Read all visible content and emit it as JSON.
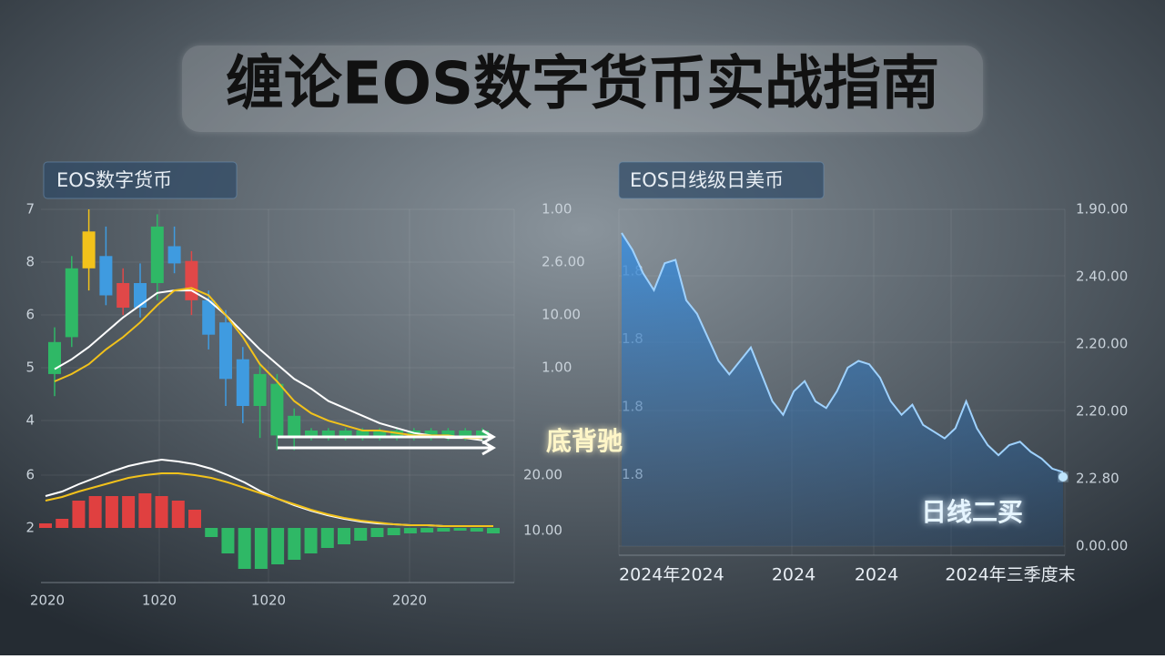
{
  "title": "缠论EOS数字货币实战指南",
  "chart_data": [
    {
      "type": "candlestick",
      "label": "EOS数字货币",
      "left_labels": [
        "7",
        "8",
        "6",
        "5",
        "4"
      ],
      "right_labels": [
        "1.00",
        "2.6.00",
        "10.00",
        "1.00"
      ],
      "x_labels": [
        "2020",
        "1020",
        "1020",
        "2020"
      ],
      "annotation": "底背驰",
      "ylim": [
        0,
        100
      ],
      "open": [
        33,
        48,
        76,
        81,
        70,
        60,
        70,
        85,
        79,
        63,
        54,
        39,
        20,
        8,
        7,
        7,
        7,
        7,
        7,
        7,
        7,
        7,
        7,
        7,
        7,
        7
      ],
      "high": [
        52,
        81,
        100,
        93,
        76,
        78,
        98,
        93,
        83,
        67,
        59,
        44,
        37,
        33,
        19,
        11,
        11,
        11,
        11,
        11,
        11,
        11,
        11,
        11,
        11,
        11
      ],
      "low": [
        24,
        44,
        67,
        61,
        57,
        56,
        63,
        74,
        57,
        43,
        20,
        13,
        7,
        2,
        2,
        6,
        6,
        6,
        6,
        6,
        6,
        6,
        6,
        6,
        6,
        6
      ],
      "close": [
        46,
        76,
        91,
        65,
        60,
        70,
        93,
        78,
        63,
        49,
        31,
        20,
        33,
        29,
        16,
        10,
        10,
        10,
        10,
        10,
        10,
        10,
        10,
        10,
        10,
        10
      ],
      "colors": [
        "#2fb866",
        "#2fb866",
        "#f2c21b",
        "#3f9be0",
        "#e04848",
        "#3f9be0",
        "#2fb866",
        "#3f9be0",
        "#e04848",
        "#3f9be0",
        "#3f9be0",
        "#3f9be0",
        "#2fb866",
        "#2fb866",
        "#2fb866",
        "#2fb866",
        "#2fb866",
        "#2fb866",
        "#2fb866",
        "#2fb866",
        "#2fb866",
        "#2fb866",
        "#2fb866",
        "#2fb866",
        "#2fb866",
        "#2fb866"
      ],
      "series": [
        {
          "color": "#ffffff",
          "values": [
            35,
            39,
            44,
            50,
            56,
            61,
            66,
            67,
            67,
            63,
            57,
            50,
            43,
            37,
            31,
            27,
            22,
            19,
            16,
            13,
            11,
            9,
            8,
            7,
            7,
            6
          ]
        },
        {
          "color": "#f2c21b",
          "values": [
            30,
            33,
            37,
            43,
            48,
            54,
            61,
            67,
            68,
            65,
            57,
            48,
            37,
            30,
            22,
            17,
            14,
            12,
            10,
            10,
            9,
            8,
            8,
            8,
            7,
            7
          ]
        }
      ]
    },
    {
      "type": "bar",
      "left_labels": [
        "6",
        "2"
      ],
      "right_labels": [
        "20.00",
        "10.00"
      ],
      "ylim": [
        -60,
        75
      ],
      "up_color": "#e04040",
      "down_color": "#2fb866",
      "values": [
        5,
        10,
        30,
        35,
        35,
        35,
        38,
        35,
        30,
        20,
        -10,
        -28,
        -45,
        -45,
        -40,
        -35,
        -28,
        -22,
        -18,
        -14,
        -10,
        -8,
        -6,
        -5,
        -4,
        -3,
        -4,
        -6
      ],
      "series": [
        {
          "color": "#ffffff",
          "values": [
            35,
            40,
            48,
            55,
            62,
            68,
            72,
            75,
            73,
            70,
            65,
            58,
            50,
            40,
            32,
            25,
            19,
            14,
            10,
            7,
            5,
            4,
            3,
            3,
            2,
            2,
            2,
            2
          ]
        },
        {
          "color": "#f2c21b",
          "values": [
            30,
            34,
            40,
            45,
            50,
            55,
            58,
            60,
            60,
            58,
            55,
            50,
            44,
            38,
            32,
            26,
            20,
            15,
            11,
            8,
            6,
            4,
            3,
            3,
            2,
            2,
            2,
            2
          ]
        }
      ]
    },
    {
      "type": "area",
      "label": "EOS日线级日美币",
      "left_labels": [
        "1.8",
        "1.8",
        "1.8",
        "1.8"
      ],
      "right_labels": [
        "1.90.00",
        "2.40.00",
        "2.20.00",
        "2.20.00",
        "2.2.80",
        "0.00.00"
      ],
      "x_labels": [
        "2024年2024",
        "2024",
        "2024",
        "2024年三季度末"
      ],
      "annotation": "日线二买",
      "ylim": [
        0,
        100
      ],
      "color": "#3a8fe0",
      "values": [
        93,
        88,
        81,
        76,
        84,
        85,
        73,
        69,
        62,
        55,
        51,
        55,
        59,
        51,
        43,
        39,
        46,
        49,
        43,
        41,
        46,
        53,
        55,
        54,
        50,
        43,
        39,
        42,
        36,
        34,
        32,
        35,
        43,
        35,
        30,
        27,
        30,
        31,
        28,
        26,
        23,
        22
      ]
    }
  ]
}
